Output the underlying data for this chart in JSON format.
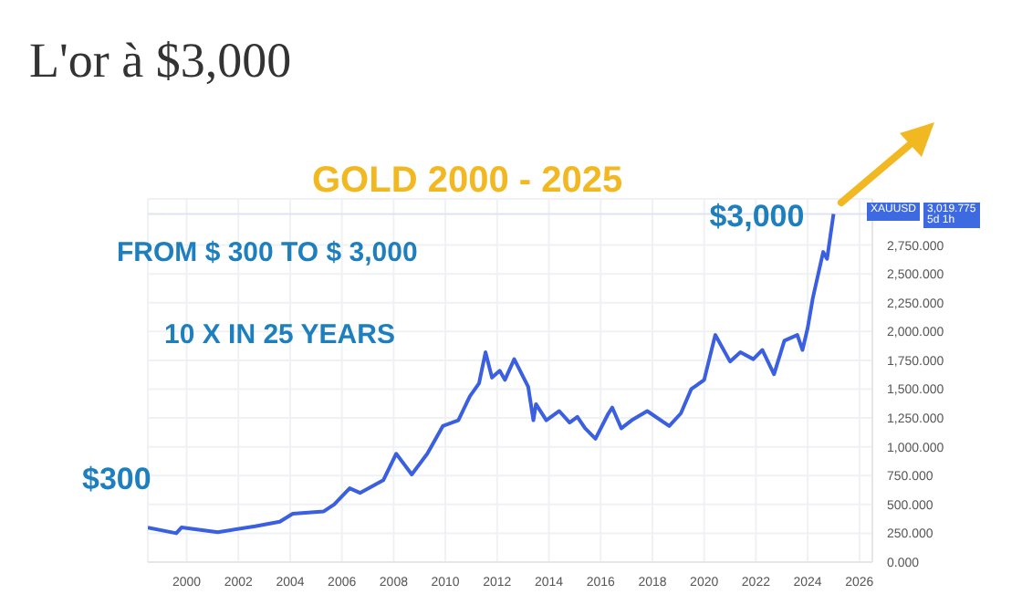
{
  "chart_data": {
    "type": "line",
    "title": "L'or à $3,000",
    "subtitle": "GOLD 2000 - 2025",
    "annotations": [
      "FROM $ 300 TO $ 3,000",
      "10 X IN 25 YEARS",
      {
        "text": "$300",
        "x": 1998.5,
        "y": 300
      },
      {
        "text": "$3,000",
        "x": 2025,
        "y": 3020
      },
      "XAUUSD",
      "5d 1h"
    ],
    "x": [
      1998.5,
      1999.6,
      1999.8,
      2001.2,
      2002.65,
      2003.6,
      2004.1,
      2005.3,
      2005.7,
      2006.3,
      2006.7,
      2007.6,
      2008.1,
      2008.7,
      2009.3,
      2009.9,
      2010.5,
      2010.95,
      2011.3,
      2011.55,
      2011.8,
      2012.1,
      2012.3,
      2012.66,
      2013.2,
      2013.4,
      2013.5,
      2013.9,
      2014.4,
      2014.8,
      2015.1,
      2015.4,
      2015.8,
      2016.3,
      2016.45,
      2016.8,
      2017.2,
      2017.8,
      2018.65,
      2019.1,
      2019.5,
      2020.0,
      2020.43,
      2021.0,
      2021.4,
      2021.9,
      2022.25,
      2022.7,
      2023.1,
      2023.6,
      2023.8,
      2024.0,
      2024.2,
      2024.6,
      2024.75,
      2025.0
    ],
    "series": [
      {
        "color": "#3a5fe0",
        "values": [
          300,
          250,
          300,
          260,
          310,
          350,
          420,
          440,
          500,
          640,
          600,
          710,
          940,
          760,
          940,
          1180,
          1230,
          1440,
          1550,
          1820,
          1600,
          1660,
          1580,
          1760,
          1520,
          1230,
          1370,
          1230,
          1310,
          1210,
          1260,
          1160,
          1070,
          1290,
          1340,
          1160,
          1230,
          1310,
          1180,
          1290,
          1500,
          1580,
          1970,
          1740,
          1820,
          1760,
          1840,
          1630,
          1920,
          1970,
          1840,
          2030,
          2290,
          2690,
          2630,
          3020
        ]
      }
    ],
    "xlim": [
      1998.5,
      2026.5
    ],
    "xticks": [
      2000,
      2002,
      2004,
      2006,
      2008,
      2010,
      2012,
      2014,
      2016,
      2018,
      2020,
      2022,
      2024,
      2026
    ],
    "ylim": [
      0,
      3150
    ],
    "yticks": [
      {
        "value": 0,
        "label": "0.000"
      },
      {
        "value": 250,
        "label": "250.000"
      },
      {
        "value": 500,
        "label": "500.000"
      },
      {
        "value": 750,
        "label": "750.000"
      },
      {
        "value": 1000,
        "label": "1,000.000"
      },
      {
        "value": 1250,
        "label": "1,250.000"
      },
      {
        "value": 1500,
        "label": "1,500.000"
      },
      {
        "value": 1750,
        "label": "1,750.000"
      },
      {
        "value": 2000,
        "label": "2,000.000"
      },
      {
        "value": 2250,
        "label": "2,250.000"
      },
      {
        "value": 2500,
        "label": "2,500.000"
      },
      {
        "value": 2750,
        "label": "2,750.000"
      }
    ],
    "ref_lines": [
      {
        "axis": "y",
        "value": 3019.775,
        "label": "3,019.775",
        "color": "#dfe4f0"
      }
    ],
    "grid": true,
    "legend": false,
    "marker": "none",
    "line_style": "solid"
  }
}
